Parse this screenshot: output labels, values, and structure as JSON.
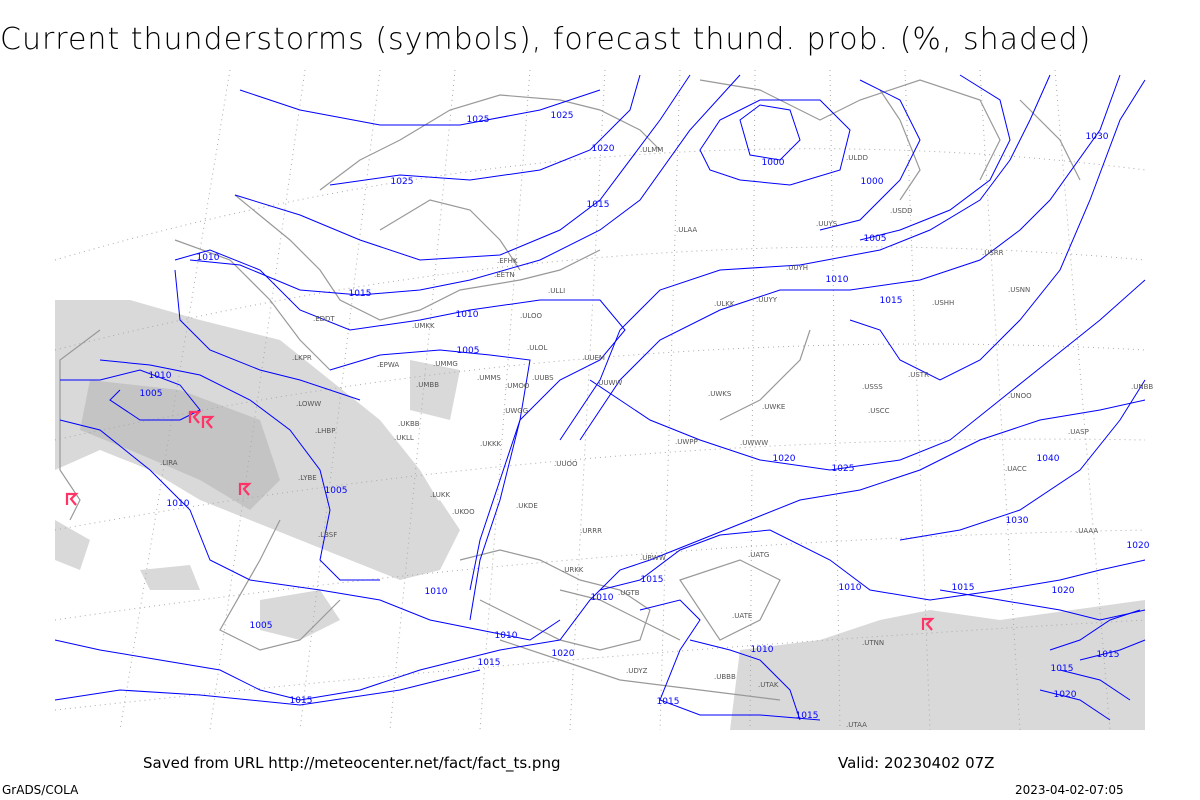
{
  "title": "Current thunderstorms (symbols), forecast thund. prob. (%, shaded)",
  "footer": {
    "source": "Saved from URL http://meteocenter.net/fact/fact_ts.png",
    "valid": "Valid: 20230402 07Z",
    "software": "GrADS/COLA",
    "timestamp": "2023-04-02-07:05"
  },
  "colors": {
    "isobar": "#0000ff",
    "coast": "#999999",
    "shade": "#d9d9d9",
    "symbol": "#ff3366",
    "station": "#555555"
  },
  "isobar_labels": [
    "1025",
    "1025",
    "1020",
    "1025",
    "1015",
    "1010",
    "1015",
    "1010",
    "1005",
    "1010",
    "1005",
    "1010",
    "1005",
    "1010",
    "1005",
    "1010",
    "1015",
    "1020",
    "1015",
    "1010",
    "1015",
    "1020",
    "1015",
    "1000",
    "1000",
    "1005",
    "1010",
    "1015",
    "1020",
    "1025",
    "1030",
    "1040",
    "1030",
    "1020",
    "1015",
    "1010",
    "1015",
    "1020",
    "1015",
    "1010",
    "1015"
  ],
  "stations": [
    "ULMM",
    "ULAA",
    "EFHK",
    "EETN",
    "ULLI",
    "ULOO",
    "ULOL",
    "UMKK",
    "EDDT",
    "EPWA",
    "UMMG",
    "UMBB",
    "UMMS",
    "UMOO",
    "UUBS",
    "UUEM",
    "UUWW",
    "UUYH",
    "ULKK",
    "UUYY",
    "UUYS",
    "ULDD",
    "USDD",
    "USRR",
    "USSS",
    "USCC",
    "UWPP",
    "UWKS",
    "UWKE",
    "UWWW",
    "UWGG",
    "UUOO",
    "UKKK",
    "UKBB",
    "UKLL",
    "LKPR",
    "LOWW",
    "LHBP",
    "LIRA",
    "LYBE",
    "LBSF",
    "LUKK",
    "UKOO",
    "UKDE",
    "URRR",
    "URKK",
    "URWW",
    "UGTB",
    "UDYZ",
    "UBBB",
    "UATG",
    "UATE",
    "UTAK",
    "UTAA",
    "UTNN",
    "UAAA",
    "UACC",
    "UASP",
    "UNBB",
    "UNOO",
    "USTR",
    "USHH",
    "USNN"
  ],
  "thunderstorm_symbol": "thunderstorm-icon"
}
